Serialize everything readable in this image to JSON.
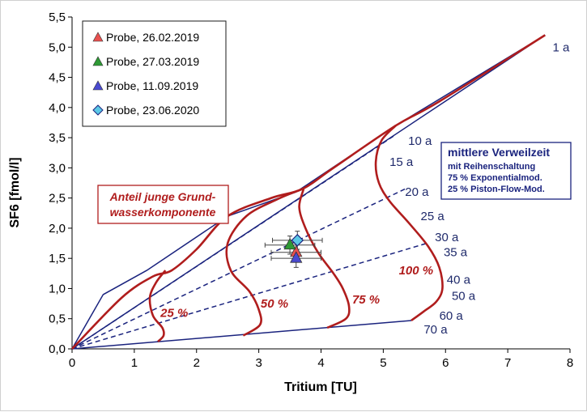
{
  "chart_data": {
    "type": "scatter",
    "xlabel": "Tritium [TU]",
    "ylabel": "SF6 [fmol/l]",
    "xlim": [
      0,
      8
    ],
    "ylim": [
      0,
      5.5
    ],
    "xticks": [
      "0",
      "1",
      "2",
      "3",
      "4",
      "5",
      "6",
      "7",
      "8"
    ],
    "yticks": [
      "0,0",
      "0,5",
      "1,0",
      "1,5",
      "2,0",
      "2,5",
      "3,0",
      "3,5",
      "4,0",
      "4,5",
      "5,0",
      "5,5"
    ],
    "grid": false,
    "legend_position": "top-left",
    "series": [
      {
        "name": "Probe, 26.02.2019",
        "marker": "triangle",
        "color": "#e8514f",
        "x": [
          3.6
        ],
        "y": [
          1.6
        ],
        "xerr": 0.4,
        "yerr": 0.15
      },
      {
        "name": "Probe, 27.03.2019",
        "marker": "triangle",
        "color": "#2e9a35",
        "x": [
          3.5
        ],
        "y": [
          1.72
        ],
        "xerr": 0.4,
        "yerr": 0.15
      },
      {
        "name": "Probe, 11.09.2019",
        "marker": "triangle",
        "color": "#4a4ad0",
        "x": [
          3.6
        ],
        "y": [
          1.5
        ],
        "xerr": 0.4,
        "yerr": 0.15
      },
      {
        "name": "Probe, 23.06.2020",
        "marker": "diamond",
        "color": "#5bc8e6",
        "x": [
          3.62
        ],
        "y": [
          1.8
        ],
        "xerr": 0.4,
        "yerr": 0.15
      }
    ],
    "model_curves": [
      {
        "id": "upper",
        "style": "solid",
        "color": "#1a237e",
        "x": [
          0,
          0.5,
          1.2,
          2.5,
          3.6,
          5.2,
          7.6
        ],
        "y": [
          0,
          0.9,
          1.3,
          2.2,
          2.6,
          3.7,
          5.2
        ]
      },
      {
        "id": "1a-line",
        "style": "solid",
        "color": "#1a237e",
        "x": [
          0,
          7.6
        ],
        "y": [
          0,
          5.2
        ]
      },
      {
        "id": "lower",
        "style": "solid",
        "color": "#1a237e",
        "x": [
          0,
          5.45
        ],
        "y": [
          0,
          0.47
        ]
      },
      {
        "id": "age-10a",
        "style": "dashed",
        "color": "#1a237e",
        "x": [
          0,
          5.2
        ],
        "y": [
          0,
          3.55
        ]
      },
      {
        "id": "age-20a",
        "style": "dashed",
        "color": "#1a237e",
        "x": [
          0,
          5.35
        ],
        "y": [
          0,
          2.65
        ]
      },
      {
        "id": "age-30a",
        "style": "dashed",
        "color": "#1a237e",
        "x": [
          0,
          5.7
        ],
        "y": [
          0,
          1.75
        ]
      },
      {
        "id": "outer",
        "style": "solid",
        "color": "#b01d1d",
        "x": [
          0,
          0.8,
          1.3,
          1.6,
          2.0,
          2.5,
          3.2,
          3.7,
          4.2,
          5.2,
          5.9,
          7.6
        ],
        "y": [
          0,
          0.85,
          1.2,
          1.3,
          1.65,
          2.2,
          2.5,
          2.65,
          3.0,
          3.7,
          4.1,
          5.2
        ]
      },
      {
        "id": "25-%",
        "style": "solid",
        "color": "#b01d1d",
        "x": [
          1.5,
          1.35,
          1.25,
          1.3,
          1.45,
          1.47,
          1.38
        ],
        "y": [
          1.3,
          1.1,
          0.85,
          0.55,
          0.35,
          0.22,
          0.12
        ]
      },
      {
        "id": "50-%",
        "style": "solid",
        "color": "#b01d1d",
        "x": [
          3.7,
          3.3,
          2.8,
          2.5,
          2.55,
          2.85,
          3.0,
          3.02,
          2.75
        ],
        "y": [
          2.65,
          2.48,
          2.2,
          1.75,
          1.3,
          0.95,
          0.65,
          0.4,
          0.22
        ]
      },
      {
        "id": "75-%",
        "style": "solid",
        "color": "#b01d1d",
        "x": [
          3.72,
          3.65,
          3.75,
          3.95,
          4.2,
          4.35,
          4.45,
          4.4,
          4.1
        ],
        "y": [
          2.65,
          2.35,
          2.0,
          1.6,
          1.25,
          1.0,
          0.7,
          0.5,
          0.35
        ]
      },
      {
        "id": "100-%",
        "style": "solid",
        "color": "#b01d1d",
        "x": [
          5.2,
          4.97,
          4.88,
          4.93,
          5.1,
          5.4,
          5.72,
          5.9,
          5.95,
          5.85,
          5.65,
          5.45
        ],
        "y": [
          3.7,
          3.45,
          3.1,
          2.75,
          2.45,
          2.1,
          1.7,
          1.35,
          1.0,
          0.78,
          0.62,
          0.47
        ]
      }
    ],
    "age_labels": [
      {
        "text": "1 a",
        "x": 7.72,
        "y": 5.0
      },
      {
        "text": "10 a",
        "x": 5.4,
        "y": 3.45
      },
      {
        "text": "15 a",
        "x": 5.1,
        "y": 3.1
      },
      {
        "text": "20 a",
        "x": 5.35,
        "y": 2.6
      },
      {
        "text": "25 a",
        "x": 5.6,
        "y": 2.2
      },
      {
        "text": "30 a",
        "x": 5.83,
        "y": 1.85
      },
      {
        "text": "35 a",
        "x": 5.97,
        "y": 1.6
      },
      {
        "text": "40 a",
        "x": 6.02,
        "y": 1.15
      },
      {
        "text": "50 a",
        "x": 6.1,
        "y": 0.88
      },
      {
        "text": "60 a",
        "x": 5.9,
        "y": 0.55
      },
      {
        "text": "70 a",
        "x": 5.65,
        "y": 0.32
      }
    ],
    "percent_labels": [
      {
        "text": "25 %",
        "x": 1.42,
        "y": 0.6
      },
      {
        "text": "50 %",
        "x": 3.03,
        "y": 0.75
      },
      {
        "text": "75 %",
        "x": 4.5,
        "y": 0.82
      },
      {
        "text": "100 %",
        "x": 5.25,
        "y": 1.3
      }
    ],
    "annotation_anteil": [
      "Anteil junge Grund-",
      "wasserkomponente"
    ],
    "annotation_model": {
      "title": "mittlere Verweilzeit",
      "lines": [
        "mit Reihenschaltung",
        "75 % Exponentialmod.",
        "25 % Piston-Flow-Mod."
      ]
    }
  }
}
